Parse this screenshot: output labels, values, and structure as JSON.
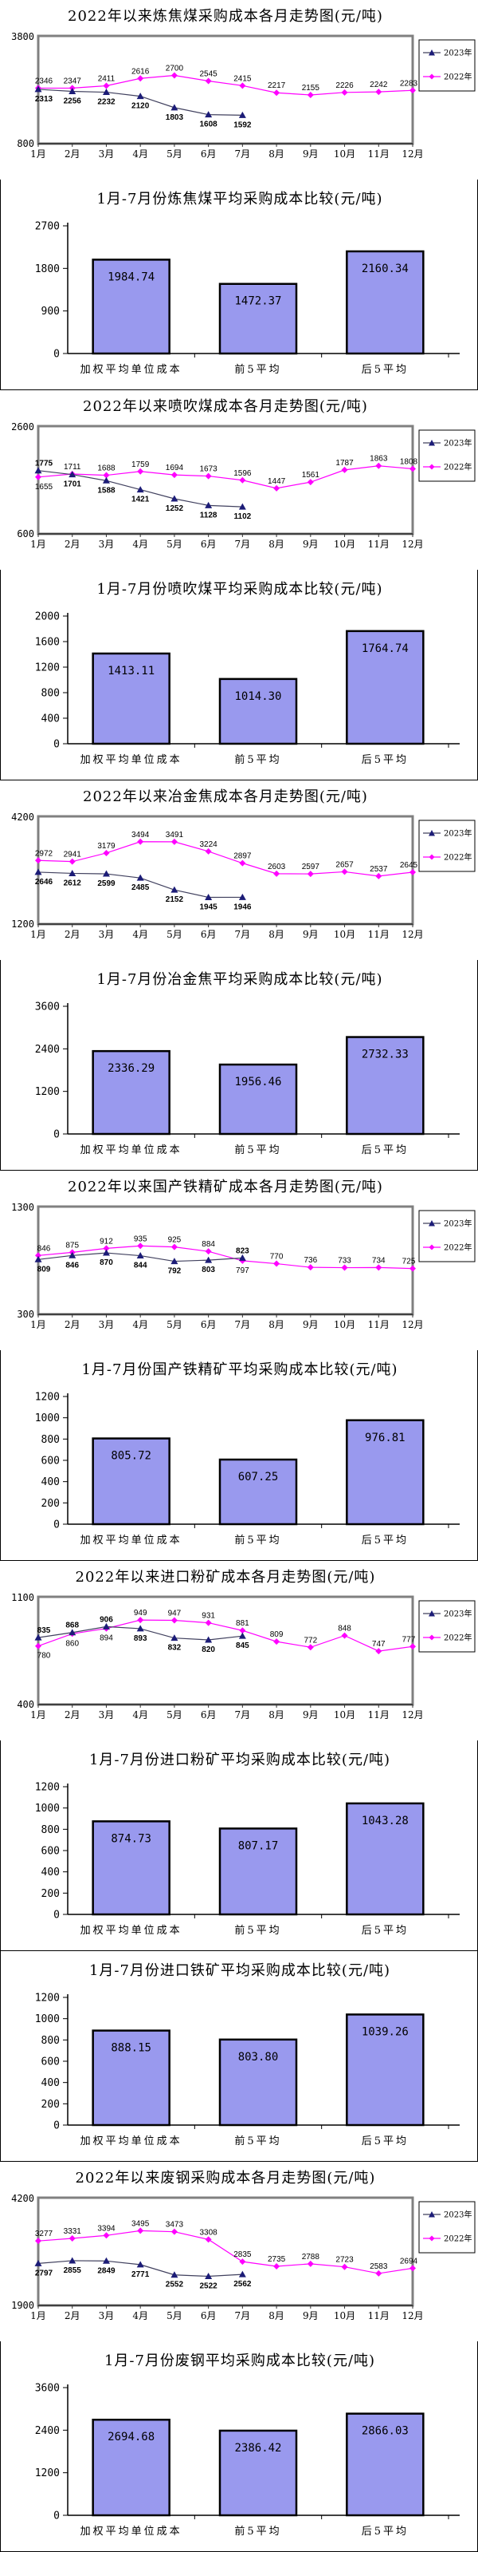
{
  "legend": {
    "year2023": "2023年",
    "year2022": "2022年"
  },
  "months": [
    "1月",
    "2月",
    "3月",
    "4月",
    "5月",
    "6月",
    "7月",
    "8月",
    "9月",
    "10月",
    "11月",
    "12月"
  ],
  "bar_categories": [
    "加权平均单位成本",
    "前5平均",
    "后5平均"
  ],
  "colors": {
    "line_2022": "#ff00ff",
    "line_2023": "#1c1c77",
    "line_2023_stroke": "#40405e",
    "bar_fill": "#9999ee",
    "bar_border": "#000000",
    "plot_border": "#808080"
  },
  "chart_data": [
    {
      "id": "coking-coal-trend",
      "type": "line",
      "title": "2022年以来炼焦煤采购成本各月走势图(元/吨)",
      "ylim": [
        800,
        3800
      ],
      "legend_position": "right",
      "grid": false,
      "series": [
        {
          "name": "2023年",
          "values": [
            2313,
            2256,
            2232,
            2120,
            1803,
            1608,
            1592
          ]
        },
        {
          "name": "2022年",
          "values": [
            2346,
            2347,
            2411,
            2616,
            2700,
            2545,
            2415,
            2217,
            2155,
            2226,
            2242,
            2283
          ]
        }
      ]
    },
    {
      "id": "coking-coal-compare",
      "type": "bar",
      "title": "1月-7月份炼焦煤平均采购成本比较(元/吨)",
      "ylim": [
        0,
        2700
      ],
      "yticks": [
        0,
        900,
        1800,
        2700
      ],
      "values": [
        1984.74,
        1472.37,
        2160.34
      ],
      "value_labels": [
        "1984.74",
        "1472.37",
        "2160.34"
      ]
    },
    {
      "id": "pci-coal-trend",
      "type": "line",
      "title": "2022年以来喷吹煤成本各月走势图(元/吨)",
      "ylim": [
        600,
        2600
      ],
      "legend_position": "right",
      "grid": false,
      "series": [
        {
          "name": "2023年",
          "values": [
            1775,
            1701,
            1588,
            1421,
            1252,
            1128,
            1102
          ]
        },
        {
          "name": "2022年",
          "values": [
            1655,
            1711,
            1688,
            1759,
            1694,
            1673,
            1596,
            1447,
            1561,
            1787,
            1863,
            1808
          ]
        }
      ]
    },
    {
      "id": "pci-coal-compare",
      "type": "bar",
      "title": "1月-7月份喷吹煤平均采购成本比较(元/吨)",
      "ylim": [
        0,
        2000
      ],
      "yticks": [
        0,
        400,
        800,
        1200,
        1600,
        2000
      ],
      "values": [
        1413.11,
        1014.3,
        1764.74
      ],
      "value_labels": [
        "1413.11",
        "1014.30",
        "1764.74"
      ]
    },
    {
      "id": "met-coke-trend",
      "type": "line",
      "title": "2022年以来冶金焦成本各月走势图(元/吨)",
      "ylim": [
        1200,
        4200
      ],
      "legend_position": "right",
      "grid": false,
      "series": [
        {
          "name": "2023年",
          "values": [
            2646,
            2612,
            2599,
            2485,
            2152,
            1945,
            1946
          ]
        },
        {
          "name": "2022年",
          "values": [
            2972,
            2941,
            3179,
            3494,
            3491,
            3224,
            2897,
            2603,
            2597,
            2657,
            2537,
            2645
          ]
        }
      ]
    },
    {
      "id": "met-coke-compare",
      "type": "bar",
      "title": "1月-7月份冶金焦平均采购成本比较(元/吨)",
      "ylim": [
        0,
        3600
      ],
      "yticks": [
        0,
        1200,
        2400,
        3600
      ],
      "values": [
        2336.29,
        1956.46,
        2732.33
      ],
      "value_labels": [
        "2336.29",
        "1956.46",
        "2732.33"
      ]
    },
    {
      "id": "domestic-iron-concentrate-trend",
      "type": "line",
      "title": "2022年以来国产铁精矿成本各月走势图(元/吨)",
      "ylim": [
        300,
        1300
      ],
      "legend_position": "right",
      "grid": false,
      "series": [
        {
          "name": "2023年",
          "values": [
            809,
            846,
            870,
            844,
            792,
            803,
            823
          ]
        },
        {
          "name": "2022年",
          "values": [
            846,
            875,
            912,
            935,
            925,
            884,
            797,
            770,
            736,
            733,
            734,
            725
          ]
        }
      ]
    },
    {
      "id": "domestic-iron-concentrate-compare",
      "type": "bar",
      "title": "1月-7月份国产铁精矿平均采购成本比较(元/吨)",
      "ylim": [
        0,
        1200
      ],
      "yticks": [
        0,
        200,
        400,
        600,
        800,
        1000,
        1200
      ],
      "values": [
        805.72,
        607.25,
        976.81
      ],
      "value_labels": [
        "805.72",
        "607.25",
        "976.81"
      ]
    },
    {
      "id": "imported-fine-ore-trend",
      "type": "line",
      "title": "2022年以来进口粉矿成本各月走势图(元/吨)",
      "ylim": [
        400,
        1100
      ],
      "legend_position": "right",
      "grid": false,
      "series": [
        {
          "name": "2023年",
          "values": [
            835,
            868,
            906,
            893,
            832,
            820,
            845
          ]
        },
        {
          "name": "2022年",
          "values": [
            780,
            860,
            894,
            949,
            947,
            931,
            881,
            809,
            772,
            848,
            747,
            777
          ]
        }
      ]
    },
    {
      "id": "imported-fine-ore-compare",
      "type": "bar",
      "title": "1月-7月份进口粉矿平均采购成本比较(元/吨)",
      "ylim": [
        0,
        1200
      ],
      "yticks": [
        0,
        200,
        400,
        600,
        800,
        1000,
        1200
      ],
      "values": [
        874.73,
        807.17,
        1043.28
      ],
      "value_labels": [
        "874.73",
        "807.17",
        "1043.28"
      ]
    },
    {
      "id": "imported-iron-ore-compare",
      "type": "bar",
      "title": "1月-7月份进口铁矿平均采购成本比较(元/吨)",
      "ylim": [
        0,
        1200
      ],
      "yticks": [
        0,
        200,
        400,
        600,
        800,
        1000,
        1200
      ],
      "values": [
        888.15,
        803.8,
        1039.26
      ],
      "value_labels": [
        "888.15",
        "803.80",
        "1039.26"
      ]
    },
    {
      "id": "scrap-steel-trend",
      "type": "line",
      "title": "2022年以来废钢采购成本各月走势图(元/吨)",
      "ylim": [
        1900,
        4200
      ],
      "legend_position": "right",
      "grid": false,
      "series": [
        {
          "name": "2023年",
          "values": [
            2797,
            2855,
            2849,
            2771,
            2552,
            2522,
            2562
          ]
        },
        {
          "name": "2022年",
          "values": [
            3277,
            3331,
            3394,
            3495,
            3473,
            3308,
            2835,
            2735,
            2788,
            2723,
            2583,
            2694
          ]
        }
      ]
    },
    {
      "id": "scrap-steel-compare",
      "type": "bar",
      "title": "1月-7月份废钢平均采购成本比较(元/吨)",
      "ylim": [
        0,
        3600
      ],
      "yticks": [
        0,
        1200,
        2400,
        3600
      ],
      "values": [
        2694.68,
        2386.42,
        2866.03
      ],
      "value_labels": [
        "2694.68",
        "2386.42",
        "2866.03"
      ]
    }
  ]
}
